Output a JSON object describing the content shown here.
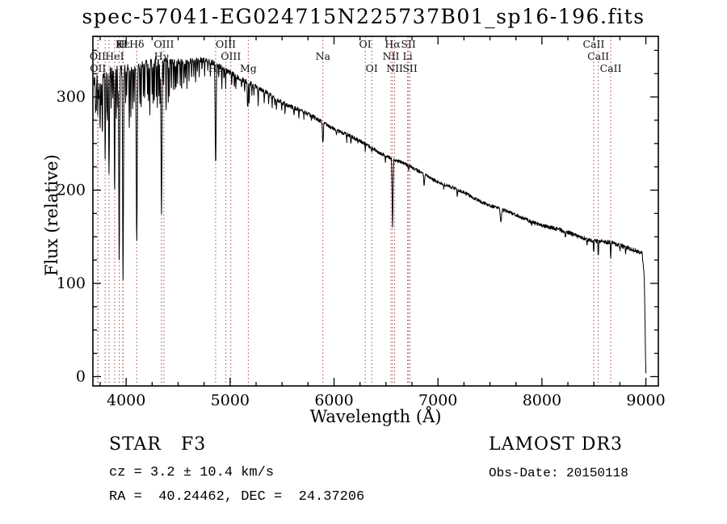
{
  "title": "spec-57041-EG024715N225737B01_sp16-196.fits",
  "annotations": {
    "class_label": "STAR   F3",
    "cz": "cz = 3.2 ± 10.4 km/s",
    "radec": "RA =  40.24462, DEC =  24.37206",
    "survey": "LAMOST DR3",
    "obs_date": "Obs-Date: 20150118"
  },
  "colors": {
    "marker_line": "#a84848",
    "spectrum": "#000000",
    "axis": "#000000"
  },
  "chart_data": {
    "type": "line",
    "title": "spec-57041-EG024715N225737B01_sp16-196.fits",
    "xlabel": "Wavelength (Å)",
    "ylabel": "Flux (relative)",
    "xlim": [
      3680,
      9120
    ],
    "ylim": [
      -10,
      365
    ],
    "xticks": [
      4000,
      5000,
      6000,
      7000,
      8000,
      9000
    ],
    "yticks": [
      0,
      100,
      200,
      300
    ],
    "x_minor_step": 250,
    "y_minor_step": 25,
    "grid": false,
    "continuum": [
      [
        3690,
        318
      ],
      [
        3760,
        323
      ],
      [
        3840,
        327
      ],
      [
        3930,
        330
      ],
      [
        4020,
        333
      ],
      [
        4150,
        335
      ],
      [
        4300,
        337
      ],
      [
        4500,
        338
      ],
      [
        4650,
        338
      ],
      [
        4800,
        336
      ],
      [
        4900,
        332
      ],
      [
        5000,
        327
      ],
      [
        5100,
        321
      ],
      [
        5200,
        314
      ],
      [
        5350,
        305
      ],
      [
        5500,
        297
      ],
      [
        5650,
        288
      ],
      [
        5800,
        279
      ],
      [
        5950,
        270
      ],
      [
        6100,
        261
      ],
      [
        6250,
        251
      ],
      [
        6400,
        242
      ],
      [
        6550,
        233
      ],
      [
        6700,
        225
      ],
      [
        6850,
        217
      ],
      [
        7000,
        209
      ],
      [
        7150,
        202
      ],
      [
        7300,
        195
      ],
      [
        7450,
        188
      ],
      [
        7600,
        181
      ],
      [
        7750,
        174
      ],
      [
        7900,
        168
      ],
      [
        8050,
        161
      ],
      [
        8200,
        155
      ],
      [
        8350,
        150
      ],
      [
        8500,
        145
      ],
      [
        8650,
        141
      ],
      [
        8800,
        138
      ],
      [
        8920,
        135
      ],
      [
        8965,
        132
      ],
      [
        8985,
        105
      ],
      [
        8996,
        28
      ],
      [
        9000,
        3
      ]
    ],
    "absorption_lines": [
      [
        3706,
        35,
        3
      ],
      [
        3712,
        30,
        3
      ],
      [
        3727,
        40,
        3
      ],
      [
        3736,
        30,
        3
      ],
      [
        3745,
        28,
        3
      ],
      [
        3750,
        55,
        3.5
      ],
      [
        3760,
        35,
        3
      ],
      [
        3771,
        65,
        4
      ],
      [
        3798,
        90,
        4.5
      ],
      [
        3815,
        40,
        3
      ],
      [
        3820,
        50,
        3
      ],
      [
        3835,
        110,
        5
      ],
      [
        3856,
        45,
        3
      ],
      [
        3872,
        35,
        3
      ],
      [
        3889,
        130,
        5
      ],
      [
        3905,
        50,
        3
      ],
      [
        3920,
        42,
        3
      ],
      [
        3933,
        210,
        5.5
      ],
      [
        3970,
        225,
        6
      ],
      [
        3995,
        38,
        3
      ],
      [
        4005,
        32,
        3
      ],
      [
        4030,
        65,
        3.5
      ],
      [
        4045,
        55,
        3
      ],
      [
        4063,
        45,
        3
      ],
      [
        4077,
        40,
        3
      ],
      [
        4102,
        185,
        6.5
      ],
      [
        4132,
        45,
        3
      ],
      [
        4144,
        48,
        3
      ],
      [
        4167,
        35,
        3
      ],
      [
        4178,
        38,
        3
      ],
      [
        4205,
        30,
        3
      ],
      [
        4215,
        40,
        3
      ],
      [
        4227,
        55,
        3.5
      ],
      [
        4250,
        38,
        3
      ],
      [
        4260,
        45,
        3
      ],
      [
        4271,
        50,
        3
      ],
      [
        4290,
        42,
        3
      ],
      [
        4300,
        50,
        3.5
      ],
      [
        4315,
        42,
        3
      ],
      [
        4325,
        45,
        3
      ],
      [
        4340,
        165,
        6.5
      ],
      [
        4360,
        30,
        3
      ],
      [
        4384,
        55,
        3.5
      ],
      [
        4405,
        45,
        3
      ],
      [
        4415,
        38,
        3
      ],
      [
        4435,
        30,
        3
      ],
      [
        4455,
        28,
        3
      ],
      [
        4470,
        32,
        3
      ],
      [
        4481,
        28,
        3
      ],
      [
        4495,
        22,
        3
      ],
      [
        4520,
        28,
        3
      ],
      [
        4534,
        32,
        3
      ],
      [
        4555,
        24,
        3
      ],
      [
        4570,
        20,
        3
      ],
      [
        4585,
        26,
        3
      ],
      [
        4605,
        20,
        3
      ],
      [
        4630,
        20,
        3
      ],
      [
        4650,
        16,
        3
      ],
      [
        4668,
        22,
        3
      ],
      [
        4685,
        14,
        3
      ],
      [
        4703,
        18,
        3
      ],
      [
        4730,
        12,
        3
      ],
      [
        4755,
        14,
        3
      ],
      [
        4785,
        12,
        3
      ],
      [
        4810,
        14,
        3
      ],
      [
        4861,
        108,
        6.5
      ],
      [
        4890,
        12,
        3
      ],
      [
        4920,
        24,
        3
      ],
      [
        4940,
        10,
        3
      ],
      [
        4957,
        18,
        3
      ],
      [
        5015,
        14,
        3
      ],
      [
        5041,
        12,
        3
      ],
      [
        5056,
        12,
        3
      ],
      [
        5110,
        10,
        3
      ],
      [
        5140,
        12,
        3
      ],
      [
        5167,
        20,
        3.5
      ],
      [
        5172,
        22,
        3.5
      ],
      [
        5183,
        22,
        3.5
      ],
      [
        5210,
        10,
        3
      ],
      [
        5230,
        10,
        3
      ],
      [
        5270,
        18,
        3.5
      ],
      [
        5328,
        12,
        3
      ],
      [
        5371,
        10,
        3
      ],
      [
        5405,
        10,
        3
      ],
      [
        5430,
        8,
        3
      ],
      [
        5446,
        10,
        3
      ],
      [
        5497,
        7,
        3
      ],
      [
        5528,
        9,
        3
      ],
      [
        5615,
        9,
        3
      ],
      [
        5662,
        7,
        3
      ],
      [
        5710,
        6,
        3
      ],
      [
        5782,
        6,
        3
      ],
      [
        5890,
        22,
        3
      ],
      [
        5896,
        18,
        3
      ],
      [
        6024,
        5,
        3
      ],
      [
        6122,
        7,
        3
      ],
      [
        6162,
        8,
        3
      ],
      [
        6230,
        5,
        3
      ],
      [
        6300,
        7,
        3
      ],
      [
        6363,
        4,
        3
      ],
      [
        6494,
        8,
        3
      ],
      [
        6563,
        72,
        6
      ],
      [
        6717,
        5,
        3
      ],
      [
        6867,
        12,
        6
      ],
      [
        7055,
        5,
        4
      ],
      [
        7186,
        7,
        5
      ],
      [
        7605,
        14,
        8
      ],
      [
        7900,
        5,
        4
      ],
      [
        8227,
        6,
        5
      ],
      [
        8434,
        5,
        4
      ],
      [
        8498,
        13,
        4
      ],
      [
        8542,
        17,
        4
      ],
      [
        8662,
        15,
        4
      ],
      [
        8750,
        6,
        4
      ],
      [
        8806,
        7,
        4
      ]
    ],
    "noise": [
      [
        3690,
        4.5
      ],
      [
        4300,
        3.5
      ],
      [
        4900,
        3
      ],
      [
        5600,
        2.2
      ],
      [
        6500,
        1.8
      ],
      [
        7600,
        1.8
      ],
      [
        8400,
        2.2
      ],
      [
        9000,
        2.5
      ]
    ],
    "markers": [
      {
        "wl": 3726,
        "label": "OII",
        "row": 2
      },
      {
        "wl": 3729,
        "label": "OII",
        "row": 3
      },
      {
        "wl": 3798,
        "label": "",
        "row": 0
      },
      {
        "wl": 3835,
        "label": "",
        "row": 0
      },
      {
        "wl": 3889,
        "label": "HeI",
        "row": 2
      },
      {
        "wl": 3933,
        "label": "K",
        "row": 1
      },
      {
        "wl": 3968,
        "label": "H",
        "row": 1
      },
      {
        "wl": 3970,
        "label": "Hε",
        "row": 1
      },
      {
        "wl": 4102,
        "label": "Hδ",
        "row": 1
      },
      {
        "wl": 4340,
        "label": "Hγ",
        "row": 2
      },
      {
        "wl": 4363,
        "label": "OIII",
        "row": 1
      },
      {
        "wl": 4861,
        "label": "Hβ",
        "row": 3
      },
      {
        "wl": 4959,
        "label": "OIII",
        "row": 1
      },
      {
        "wl": 5007,
        "label": "OIII",
        "row": 2
      },
      {
        "wl": 5175,
        "label": "Mg",
        "row": 3
      },
      {
        "wl": 5893,
        "label": "Na",
        "row": 2
      },
      {
        "wl": 6300,
        "label": "OI",
        "row": 1
      },
      {
        "wl": 6363,
        "label": "OI",
        "row": 3
      },
      {
        "wl": 6548,
        "label": "NII",
        "row": 2
      },
      {
        "wl": 6563,
        "label": "Hα",
        "row": 1
      },
      {
        "wl": 6583,
        "label": "NII",
        "row": 3
      },
      {
        "wl": 6708,
        "label": "Li",
        "row": 2
      },
      {
        "wl": 6716,
        "label": "SII",
        "row": 1
      },
      {
        "wl": 6731,
        "label": "SII",
        "row": 3
      },
      {
        "wl": 8498,
        "label": "CaII",
        "row": 1
      },
      {
        "wl": 8542,
        "label": "CaII",
        "row": 2
      },
      {
        "wl": 8662,
        "label": "CaII",
        "row": 3
      }
    ]
  }
}
